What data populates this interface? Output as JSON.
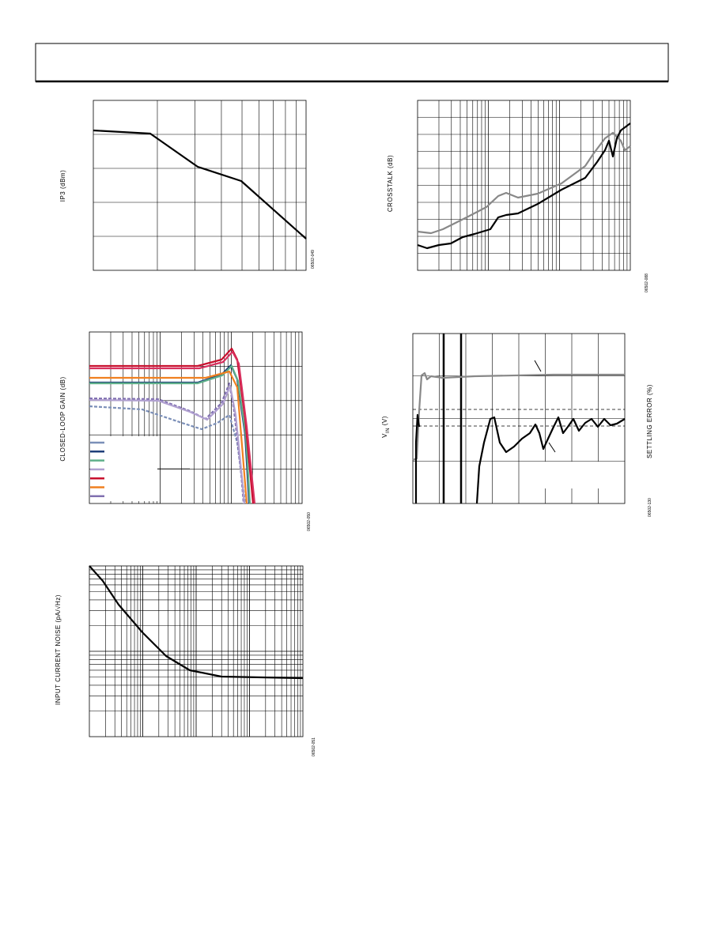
{
  "charts": [
    {
      "y_label": "IP3 (dBm)",
      "figure_id": "06502-049"
    },
    {
      "y_label": "CROSSTALK (dB)",
      "figure_id": "06502-088"
    },
    {
      "y_label": "CLOSED-LOOP GAIN (dB)",
      "figure_id": "06502-050"
    },
    {
      "y_label": {
        "main": "V",
        "sub": "IN",
        "unit": " (V)"
      },
      "y2_label": "SETTLING ERROR (%)",
      "figure_id": "06502-130"
    },
    {
      "y_label": "INPUT CURRENT NOISE (pA/√Hz)",
      "figure_id": "06502-051"
    }
  ]
}
